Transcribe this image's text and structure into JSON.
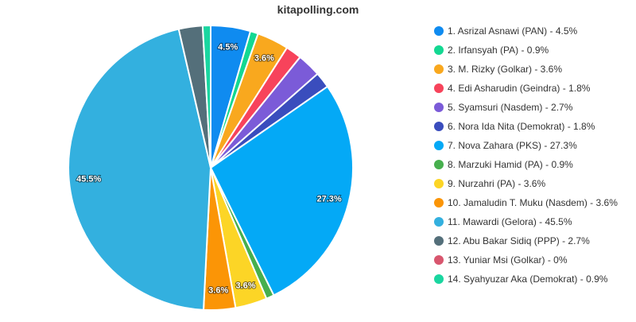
{
  "title": "kitapolling.com",
  "chart_data": {
    "type": "pie",
    "title": "kitapolling.com",
    "legend_position": "right",
    "slices": [
      {
        "label": "1. Asrizal Asnawi (PAN) - 4.5%",
        "value": 4.5,
        "color": "#0f8bf0",
        "data_label": "4.5%"
      },
      {
        "label": "2. Irfansyah (PA) - 0.9%",
        "value": 0.9,
        "color": "#13d892",
        "data_label": ""
      },
      {
        "label": "3. M. Rizky (Golkar) - 3.6%",
        "value": 3.6,
        "color": "#f9a81e",
        "data_label": "3.6%"
      },
      {
        "label": "4. Edi Asharudin (Geindra) - 1.8%",
        "value": 1.8,
        "color": "#f7435b",
        "data_label": ""
      },
      {
        "label": "5. Syamsuri (Nasdem) - 2.7%",
        "value": 2.7,
        "color": "#7b5bd8",
        "data_label": ""
      },
      {
        "label": "6. Nora Ida Nita (Demokrat) - 1.8%",
        "value": 1.8,
        "color": "#3a4dbd",
        "data_label": ""
      },
      {
        "label": "7. Nova Zahara (PKS) - 27.3%",
        "value": 27.3,
        "color": "#04a9f6",
        "data_label": "27.3%"
      },
      {
        "label": "8. Marzuki Hamid (PA) - 0.9%",
        "value": 0.9,
        "color": "#47af4e",
        "data_label": ""
      },
      {
        "label": "9. Nurzahri (PA) - 3.6%",
        "value": 3.6,
        "color": "#fcd526",
        "data_label": "3.6%"
      },
      {
        "label": "10. Jamaludin T. Muku (Nasdem) - 3.6%",
        "value": 3.6,
        "color": "#fb9506",
        "data_label": "3.6%"
      },
      {
        "label": "11. Mawardi (Gelora) - 45.5%",
        "value": 45.5,
        "color": "#33b0df",
        "data_label": "45.5%"
      },
      {
        "label": "12. Abu Bakar Sidiq (PPP) - 2.7%",
        "value": 2.7,
        "color": "#546f7a",
        "data_label": ""
      },
      {
        "label": "13. Yuniar Msi (Golkar) - 0%",
        "value": 0,
        "color": "#d8566e",
        "data_label": ""
      },
      {
        "label": "14. Syahyuzar Aka (Demokrat) - 0.9%",
        "value": 0.9,
        "color": "#1ad6a0",
        "data_label": ""
      }
    ]
  }
}
